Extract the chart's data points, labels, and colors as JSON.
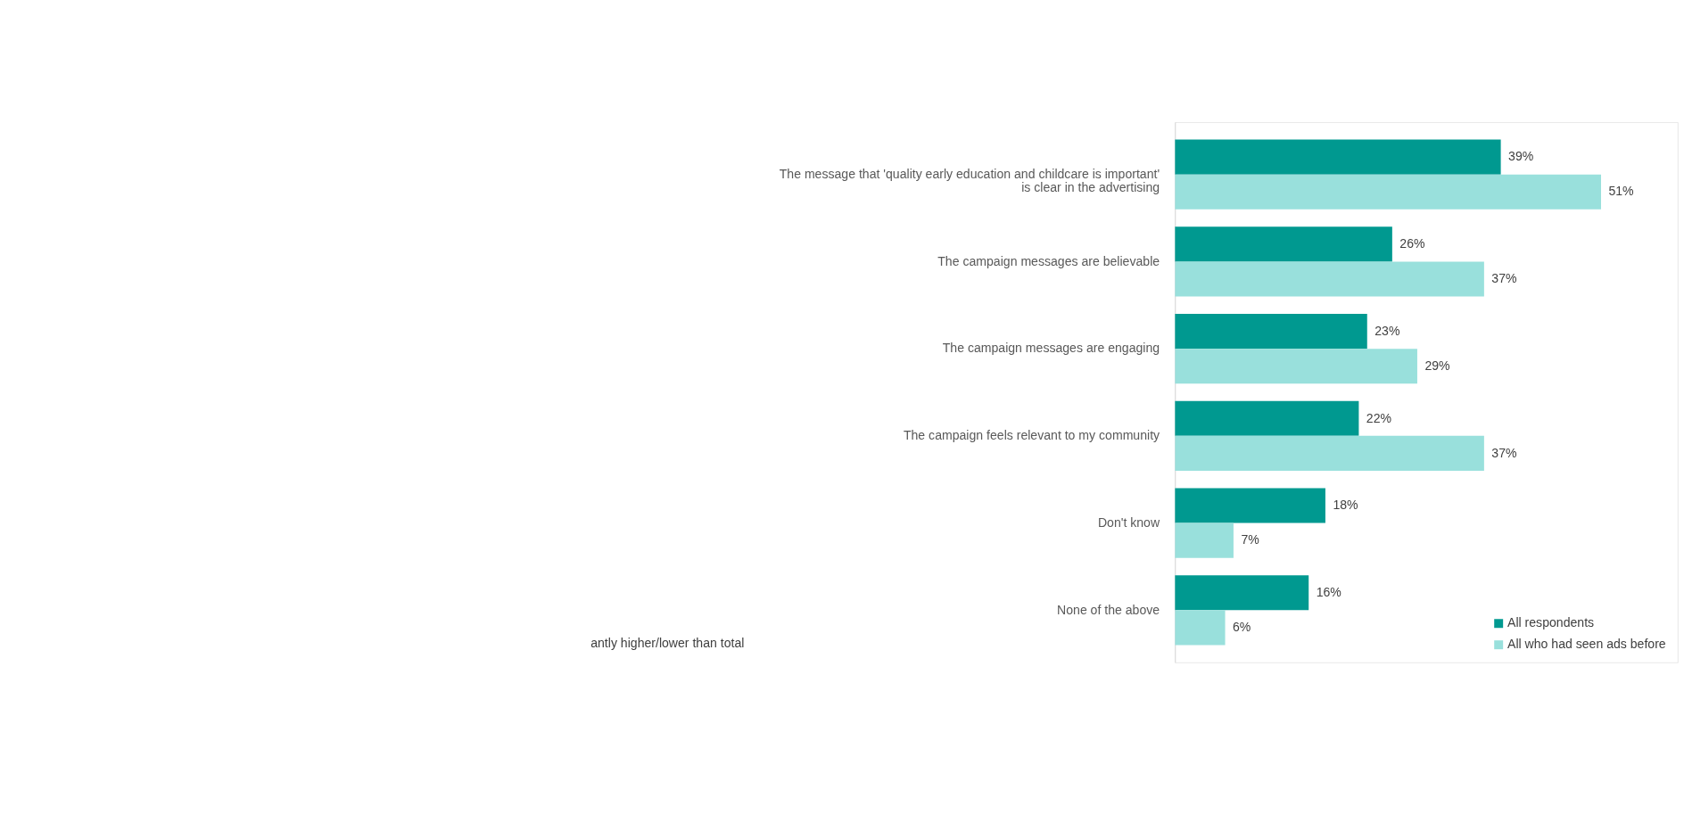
{
  "chart_data": {
    "type": "bar",
    "orientation": "horizontal",
    "categories": [
      "The message that 'quality early education and childcare is important' is clear in the advertising",
      "The campaign messages are believable",
      "The campaign messages are engaging",
      "The campaign feels relevant to my community",
      "Don't know",
      "None of the above"
    ],
    "series": [
      {
        "name": "All respondents",
        "color": "#009990",
        "values": [
          39,
          26,
          23,
          22,
          18,
          16
        ],
        "value_labels": [
          "39%",
          "26%",
          "23%",
          "22%",
          "18%",
          "16%"
        ]
      },
      {
        "name": "All who had seen ads before",
        "color": "#99e0dc",
        "values": [
          51,
          37,
          29,
          37,
          7,
          6
        ],
        "value_labels": [
          "51%",
          "37%",
          "29%",
          "37%",
          "7%",
          "6%"
        ]
      }
    ],
    "legend": "bottom right",
    "annotations": [
      "antly higher/lower than total"
    ]
  }
}
